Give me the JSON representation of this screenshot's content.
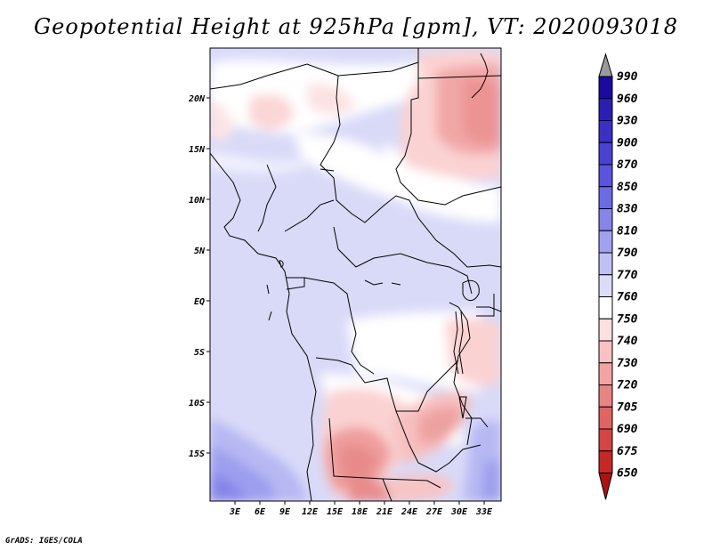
{
  "title": "Geopotential Height at 925hPa [gpm], VT: 2020093018",
  "credit": "GrADS: IGES/COLA",
  "lat_labels": [
    "20N",
    "15N",
    "10N",
    "5N",
    "EQ",
    "5S",
    "10S",
    "15S"
  ],
  "lon_labels": [
    "3E",
    "6E",
    "9E",
    "12E",
    "15E",
    "18E",
    "21E",
    "24E",
    "27E",
    "30E",
    "33E"
  ],
  "colorbar": {
    "levels": [
      "990",
      "960",
      "930",
      "900",
      "870",
      "850",
      "830",
      "810",
      "790",
      "770",
      "760",
      "750",
      "740",
      "730",
      "720",
      "705",
      "690",
      "675",
      "650"
    ],
    "colors": [
      "#1a0aa0",
      "#2b1fb3",
      "#3a30c4",
      "#4a42d1",
      "#5a55dc",
      "#6d6be4",
      "#8585ea",
      "#a0a2f0",
      "#bfc1f5",
      "#dcdcf9",
      "#ffffff",
      "#fde0e0",
      "#f9c3c3",
      "#f2a3a3",
      "#e98484",
      "#e06464",
      "#d44545",
      "#c62828",
      "#a81414"
    ]
  },
  "region": {
    "lon_range": [
      0,
      35
    ],
    "lat_range": [
      -20,
      25
    ]
  }
}
